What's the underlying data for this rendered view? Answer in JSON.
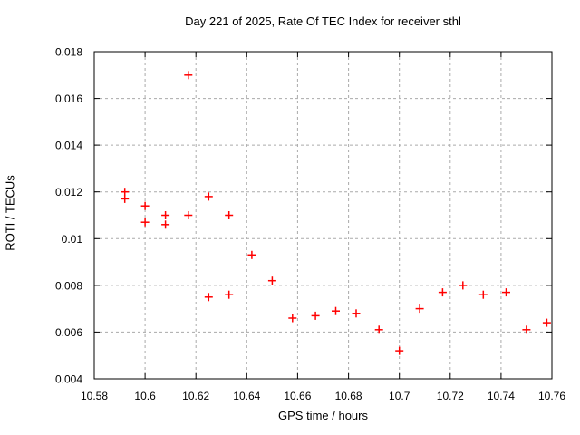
{
  "page": {
    "background": "#ffffff"
  },
  "chart_data": {
    "type": "scatter",
    "title": "Day 221 of 2025, Rate Of TEC Index for receiver sthl",
    "xlabel": "GPS time / hours",
    "ylabel": "ROTI / TECUs",
    "xlim": [
      10.58,
      10.76
    ],
    "ylim": [
      0.004,
      0.018
    ],
    "xticks": [
      10.58,
      10.6,
      10.62,
      10.64,
      10.66,
      10.68,
      10.7,
      10.72,
      10.74,
      10.76
    ],
    "xtick_labels": [
      "10.58",
      "10.6",
      "10.62",
      "10.64",
      "10.66",
      "10.68",
      "10.7",
      "10.72",
      "10.74",
      "10.76"
    ],
    "yticks": [
      0.004,
      0.006,
      0.008,
      0.01,
      0.012,
      0.014,
      0.016,
      0.018
    ],
    "ytick_labels": [
      "0.004",
      "0.006",
      "0.008",
      "0.01",
      "0.012",
      "0.014",
      "0.016",
      "0.018"
    ],
    "grid": true,
    "legend": "none",
    "marker": {
      "shape": "plus",
      "color": "#ff0000",
      "size": 9
    },
    "colors": {
      "grid": "#aaaaaa",
      "axis": "#000000",
      "text": "#000000"
    },
    "points": [
      [
        10.592,
        0.012
      ],
      [
        10.592,
        0.0117
      ],
      [
        10.6,
        0.0114
      ],
      [
        10.6,
        0.0107
      ],
      [
        10.608,
        0.011
      ],
      [
        10.608,
        0.0106
      ],
      [
        10.617,
        0.017
      ],
      [
        10.617,
        0.011
      ],
      [
        10.625,
        0.0118
      ],
      [
        10.625,
        0.0075
      ],
      [
        10.633,
        0.011
      ],
      [
        10.633,
        0.0076
      ],
      [
        10.642,
        0.0093
      ],
      [
        10.65,
        0.0082
      ],
      [
        10.658,
        0.0066
      ],
      [
        10.667,
        0.0067
      ],
      [
        10.675,
        0.0069
      ],
      [
        10.683,
        0.0068
      ],
      [
        10.692,
        0.0061
      ],
      [
        10.7,
        0.0052
      ],
      [
        10.708,
        0.007
      ],
      [
        10.717,
        0.0077
      ],
      [
        10.725,
        0.008
      ],
      [
        10.733,
        0.0076
      ],
      [
        10.742,
        0.0077
      ],
      [
        10.75,
        0.0061
      ],
      [
        10.758,
        0.0064
      ]
    ]
  }
}
